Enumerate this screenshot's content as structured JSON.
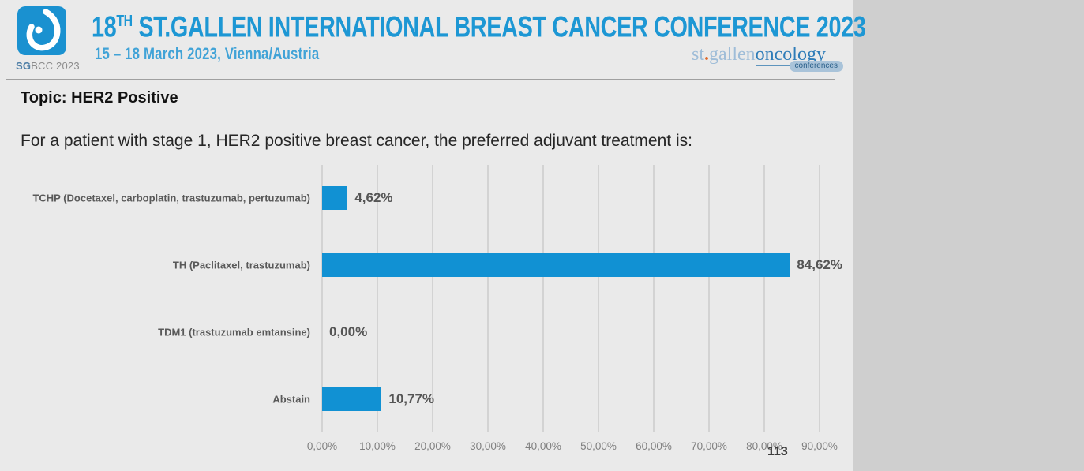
{
  "header": {
    "logo_caption_bold": "SG",
    "logo_caption_rest": "BCC 2023",
    "title_num": "18",
    "title_sup": "TH",
    "title_rest": " ST.GALLEN INTERNATIONAL BREAST CANCER CONFERENCE 2023",
    "subtitle": "15 – 18 March 2023, Vienna/Austria",
    "brand_st": "st",
    "brand_dot": ".",
    "brand_gallen": "gallen",
    "brand_oncology": "oncology",
    "brand_badge": "conferences"
  },
  "topic_label": "Topic: HER2 Positive",
  "question": "For a patient with stage 1, HER2 positive breast cancer, the preferred adjuvant treatment is:",
  "page_number": "113",
  "chart_data": {
    "type": "bar",
    "orientation": "horizontal",
    "title": "",
    "categories": [
      "TCHP (Docetaxel, carboplatin, trastuzumab, pertuzumab)",
      "TH (Paclitaxel, trastuzumab)",
      "TDM1 (trastuzumab emtansine)",
      "Abstain"
    ],
    "values": [
      4.62,
      84.62,
      0.0,
      10.77
    ],
    "value_labels": [
      "4,62%",
      "84,62%",
      "0,00%",
      "10,77%"
    ],
    "x_ticks": [
      "0,00%",
      "10,00%",
      "20,00%",
      "30,00%",
      "40,00%",
      "50,00%",
      "60,00%",
      "70,00%",
      "80,00%",
      "90,00%"
    ],
    "x_tick_values": [
      0,
      10,
      20,
      30,
      40,
      50,
      60,
      70,
      80,
      90
    ],
    "xlim": [
      0,
      90
    ],
    "grid": true,
    "legend": false,
    "bar_color": "#1191d3"
  },
  "colors": {
    "background": "#eaeaea",
    "title_blue": "#1d97d4",
    "subtitle_blue": "#41a3d7",
    "logo_blue": "#1a91d0",
    "bar_blue": "#1191d3",
    "divider_gray": "#a0a0a0",
    "category_label_gray": "#595959",
    "value_label_gray": "#555555",
    "tick_label_gray": "#7f7f7f"
  }
}
